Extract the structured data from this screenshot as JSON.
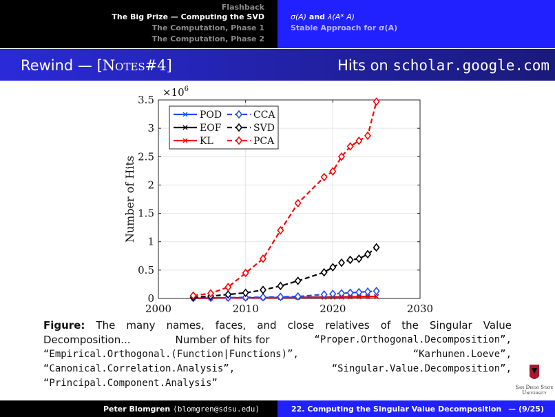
{
  "nav": {
    "left": [
      {
        "label": "Flashback"
      },
      {
        "label": "The Big Prize — Computing the SVD"
      },
      {
        "label": "The Computation, Phase 1"
      },
      {
        "label": "The Computation, Phase 2"
      }
    ],
    "right": [
      {
        "label_part1": "σ(A)",
        "label_mid": " and ",
        "label_part2": "λ(A* A)"
      },
      {
        "label": "Stable Approach for σ(A)"
      }
    ]
  },
  "title": {
    "left_prefix": "Rewind — [",
    "left_notes": "Notes",
    "left_suffix": "#4]",
    "right_prefix": "Hits on ",
    "right_site": "scholar.google.com"
  },
  "chart_data": {
    "type": "line",
    "ylabel": "Number of Hits",
    "y_multiplier": "×10",
    "y_exponent": "6",
    "xlim": [
      2000,
      2030
    ],
    "ylim": [
      0,
      3.5
    ],
    "xticks": [
      2000,
      2010,
      2020,
      2030
    ],
    "yticks": [
      0,
      0.5,
      1,
      1.5,
      2,
      2.5,
      3,
      3.5
    ],
    "ytick_labels": [
      "0",
      "0.5",
      "1",
      "1.5",
      "2",
      "2.5",
      "3",
      "3.5"
    ],
    "grid": true,
    "legend_position": "top-left",
    "series": [
      {
        "name": "POD",
        "color": "#1f4bff",
        "dashed": false,
        "marker": "x",
        "x": [
          2004,
          2006,
          2008,
          2010,
          2012,
          2014,
          2016,
          2019,
          2020,
          2021,
          2022,
          2023,
          2024,
          2025
        ],
        "y": [
          0.005,
          0.007,
          0.009,
          0.011,
          0.013,
          0.016,
          0.019,
          0.022,
          0.024,
          0.026,
          0.028,
          0.03,
          0.032,
          0.034
        ]
      },
      {
        "name": "EOF",
        "color": "#000000",
        "dashed": false,
        "marker": "x",
        "x": [
          2004,
          2006,
          2008,
          2010,
          2012,
          2014,
          2016,
          2019,
          2020,
          2021,
          2022,
          2023,
          2024,
          2025
        ],
        "y": [
          0.004,
          0.006,
          0.008,
          0.01,
          0.012,
          0.015,
          0.018,
          0.021,
          0.023,
          0.025,
          0.027,
          0.029,
          0.031,
          0.033
        ]
      },
      {
        "name": "KL",
        "color": "#ff0000",
        "dashed": false,
        "marker": "x",
        "x": [
          2004,
          2006,
          2008,
          2010,
          2012,
          2014,
          2016,
          2019,
          2020,
          2021,
          2022,
          2023,
          2024,
          2025
        ],
        "y": [
          0.003,
          0.005,
          0.007,
          0.009,
          0.011,
          0.013,
          0.016,
          0.019,
          0.021,
          0.023,
          0.025,
          0.027,
          0.029,
          0.031
        ]
      },
      {
        "name": "CCA",
        "color": "#1f4bff",
        "dashed": true,
        "marker": "diamond",
        "x": [
          2004,
          2006,
          2008,
          2010,
          2012,
          2014,
          2016,
          2019,
          2020,
          2021,
          2022,
          2023,
          2024,
          2025
        ],
        "y": [
          0.01,
          0.012,
          0.015,
          0.018,
          0.022,
          0.028,
          0.035,
          0.07,
          0.08,
          0.09,
          0.1,
          0.11,
          0.12,
          0.13
        ]
      },
      {
        "name": "SVD",
        "color": "#000000",
        "dashed": true,
        "marker": "diamond",
        "x": [
          2004,
          2006,
          2008,
          2010,
          2012,
          2014,
          2016,
          2019,
          2020,
          2021,
          2022,
          2023,
          2024,
          2025
        ],
        "y": [
          0.02,
          0.04,
          0.07,
          0.1,
          0.15,
          0.22,
          0.31,
          0.46,
          0.55,
          0.63,
          0.68,
          0.7,
          0.78,
          0.9
        ]
      },
      {
        "name": "PCA",
        "color": "#ff0000",
        "dashed": true,
        "marker": "diamond",
        "x": [
          2004,
          2006,
          2008,
          2010,
          2012,
          2014,
          2016,
          2019,
          2020,
          2021,
          2022,
          2023,
          2024,
          2025
        ],
        "y": [
          0.05,
          0.09,
          0.2,
          0.45,
          0.7,
          1.2,
          1.68,
          2.14,
          2.24,
          2.5,
          2.68,
          2.78,
          2.87,
          3.47
        ]
      }
    ]
  },
  "caption": {
    "figure_label": "Figure:",
    "line1_words": [
      "The",
      "many",
      "names,",
      "faces,",
      "and",
      "close",
      "relatives",
      "of",
      "the",
      "Singular",
      "Value"
    ],
    "line2_a": "Decomposition...",
    "line2_b": "Number of hits for",
    "line2_c": "“Proper.Orthogonal.Decomposition”,",
    "line3_a": "“Empirical.Orthogonal.(Function|Functions)”,",
    "line3_b": "“Karhunen.Loeve”,",
    "line4_a": "“Canonical.Correlation.Analysis”,",
    "line4_b": "“Singular.Value.Decomposition”,",
    "line5": "“Principal.Component.Analysis”"
  },
  "logo": {
    "line1": "San Diego State",
    "line2": "University",
    "color": "#a6192e"
  },
  "footer": {
    "author": "Peter Blomgren",
    "email": "⟨blomgren@sdsu.edu⟩",
    "lecture": "22. Computing the Singular Value Decomposition",
    "page": "— (9/25)"
  }
}
